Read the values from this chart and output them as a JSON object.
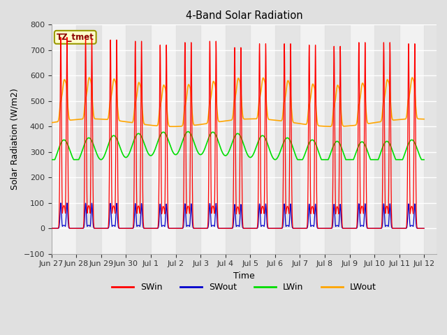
{
  "title": "4-Band Solar Radiation",
  "xlabel": "Time",
  "ylabel": "Solar Radiation (W/m2)",
  "ylim": [
    -100,
    800
  ],
  "tz_label": "TZ_tmet",
  "colors": {
    "SWin": "#ff0000",
    "SWout": "#0000cc",
    "LWin": "#00dd00",
    "LWout": "#ffa500"
  },
  "legend_labels": [
    "SWin",
    "SWout",
    "LWin",
    "LWout"
  ],
  "total_days": 15,
  "points_per_day": 288,
  "fig_width": 6.4,
  "fig_height": 4.8,
  "dpi": 100,
  "bg_color": "#e0e0e0",
  "plot_bg_color": "#f2f2f2",
  "grid_color": "#ffffff",
  "tick_labels": [
    "Jun 27",
    "Jun 28",
    "Jun 29",
    "Jun 30",
    "Jul 1",
    "Jul 2",
    "Jul 3",
    "Jul 4",
    "Jul 5",
    "Jul 6",
    "Jul 7",
    "Jul 8",
    "Jul 9",
    "Jul 10",
    "Jul 11",
    "Jul 12"
  ]
}
